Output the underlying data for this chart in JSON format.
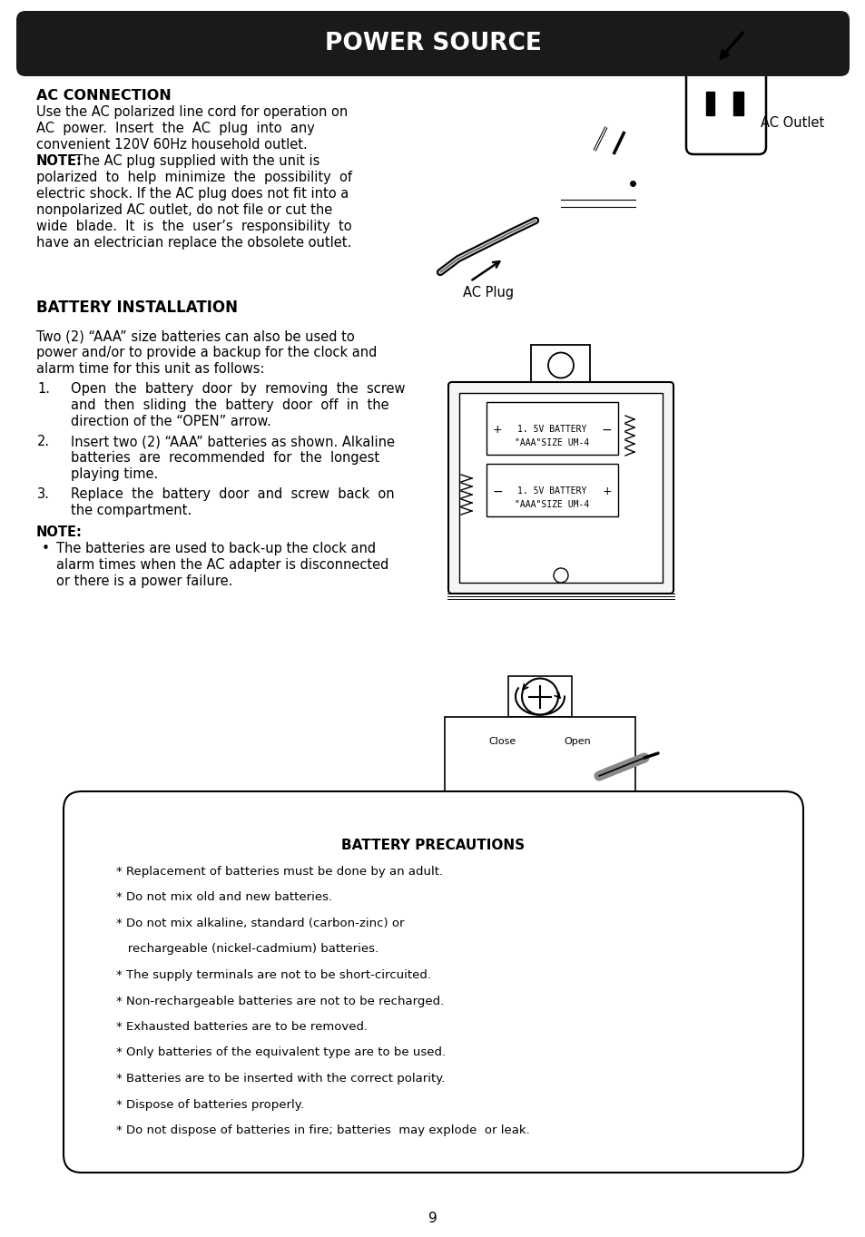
{
  "title": "POWER SOURCE",
  "title_bg": "#1a1a1a",
  "title_fg": "#ffffff",
  "page_bg": "#ffffff",
  "page_number": "9",
  "ac_connection_heading": "AC CONNECTION",
  "ac_connection_body_plain": [
    "Use the AC polarized line cord for operation on",
    "AC  power.  Insert  the  AC  plug  into  any",
    "convenient 120V 60Hz household outlet."
  ],
  "ac_connection_note_bold": "NOTE:",
  "ac_connection_note_rest": " The AC plug supplied with the unit is",
  "ac_connection_note_lines": [
    "polarized  to  help  minimize  the  possibility  of",
    "electric shock. If the AC plug does not fit into a",
    "nonpolarized AC outlet, do not file or cut the",
    "wide  blade.  It  is  the  user’s  responsibility  to",
    "have an electrician replace the obsolete outlet."
  ],
  "ac_outlet_label": "AC Outlet",
  "ac_plug_label": "AC Plug",
  "battery_heading": "BATTERY INSTALLATION",
  "battery_intro": [
    "Two (2) “AAA” size batteries can also be used to",
    "power and/or to provide a backup for the clock and",
    "alarm time for this unit as follows:"
  ],
  "battery_steps": [
    [
      "1.",
      "Open  the  battery  door  by  removing  the  screw",
      "and  then  sliding  the  battery  door  off  in  the",
      "direction of the “OPEN” arrow."
    ],
    [
      "2.",
      "Insert two (2) “AAA” batteries as shown. Alkaline",
      "batteries  are  recommended  for  the  longest",
      "playing time."
    ],
    [
      "3.",
      "Replace  the  battery  door  and  screw  back  on",
      "the compartment."
    ]
  ],
  "note_heading": "NOTE:",
  "note_text_lines": [
    "The batteries are used to back-up the clock and",
    "alarm times when the AC adapter is disconnected",
    "or there is a power failure."
  ],
  "precautions_title": "BATTERY PRECAUTIONS",
  "precautions": [
    "* Replacement of batteries must be done by an adult.",
    "* Do not mix old and new batteries.",
    "* Do not mix alkaline, standard (carbon-zinc) or",
    "   rechargeable (nickel-cadmium) batteries.",
    "* The supply terminals are not to be short-circuited.",
    "* Non-rechargeable batteries are not to be recharged.",
    "* Exhausted batteries are to be removed.",
    "* Only batteries of the equivalent type are to be used.",
    "* Batteries are to be inserted with the correct polarity.",
    "* Dispose of batteries properly.",
    "* Do not dispose of batteries in fire; batteries  may explode  or leak."
  ]
}
